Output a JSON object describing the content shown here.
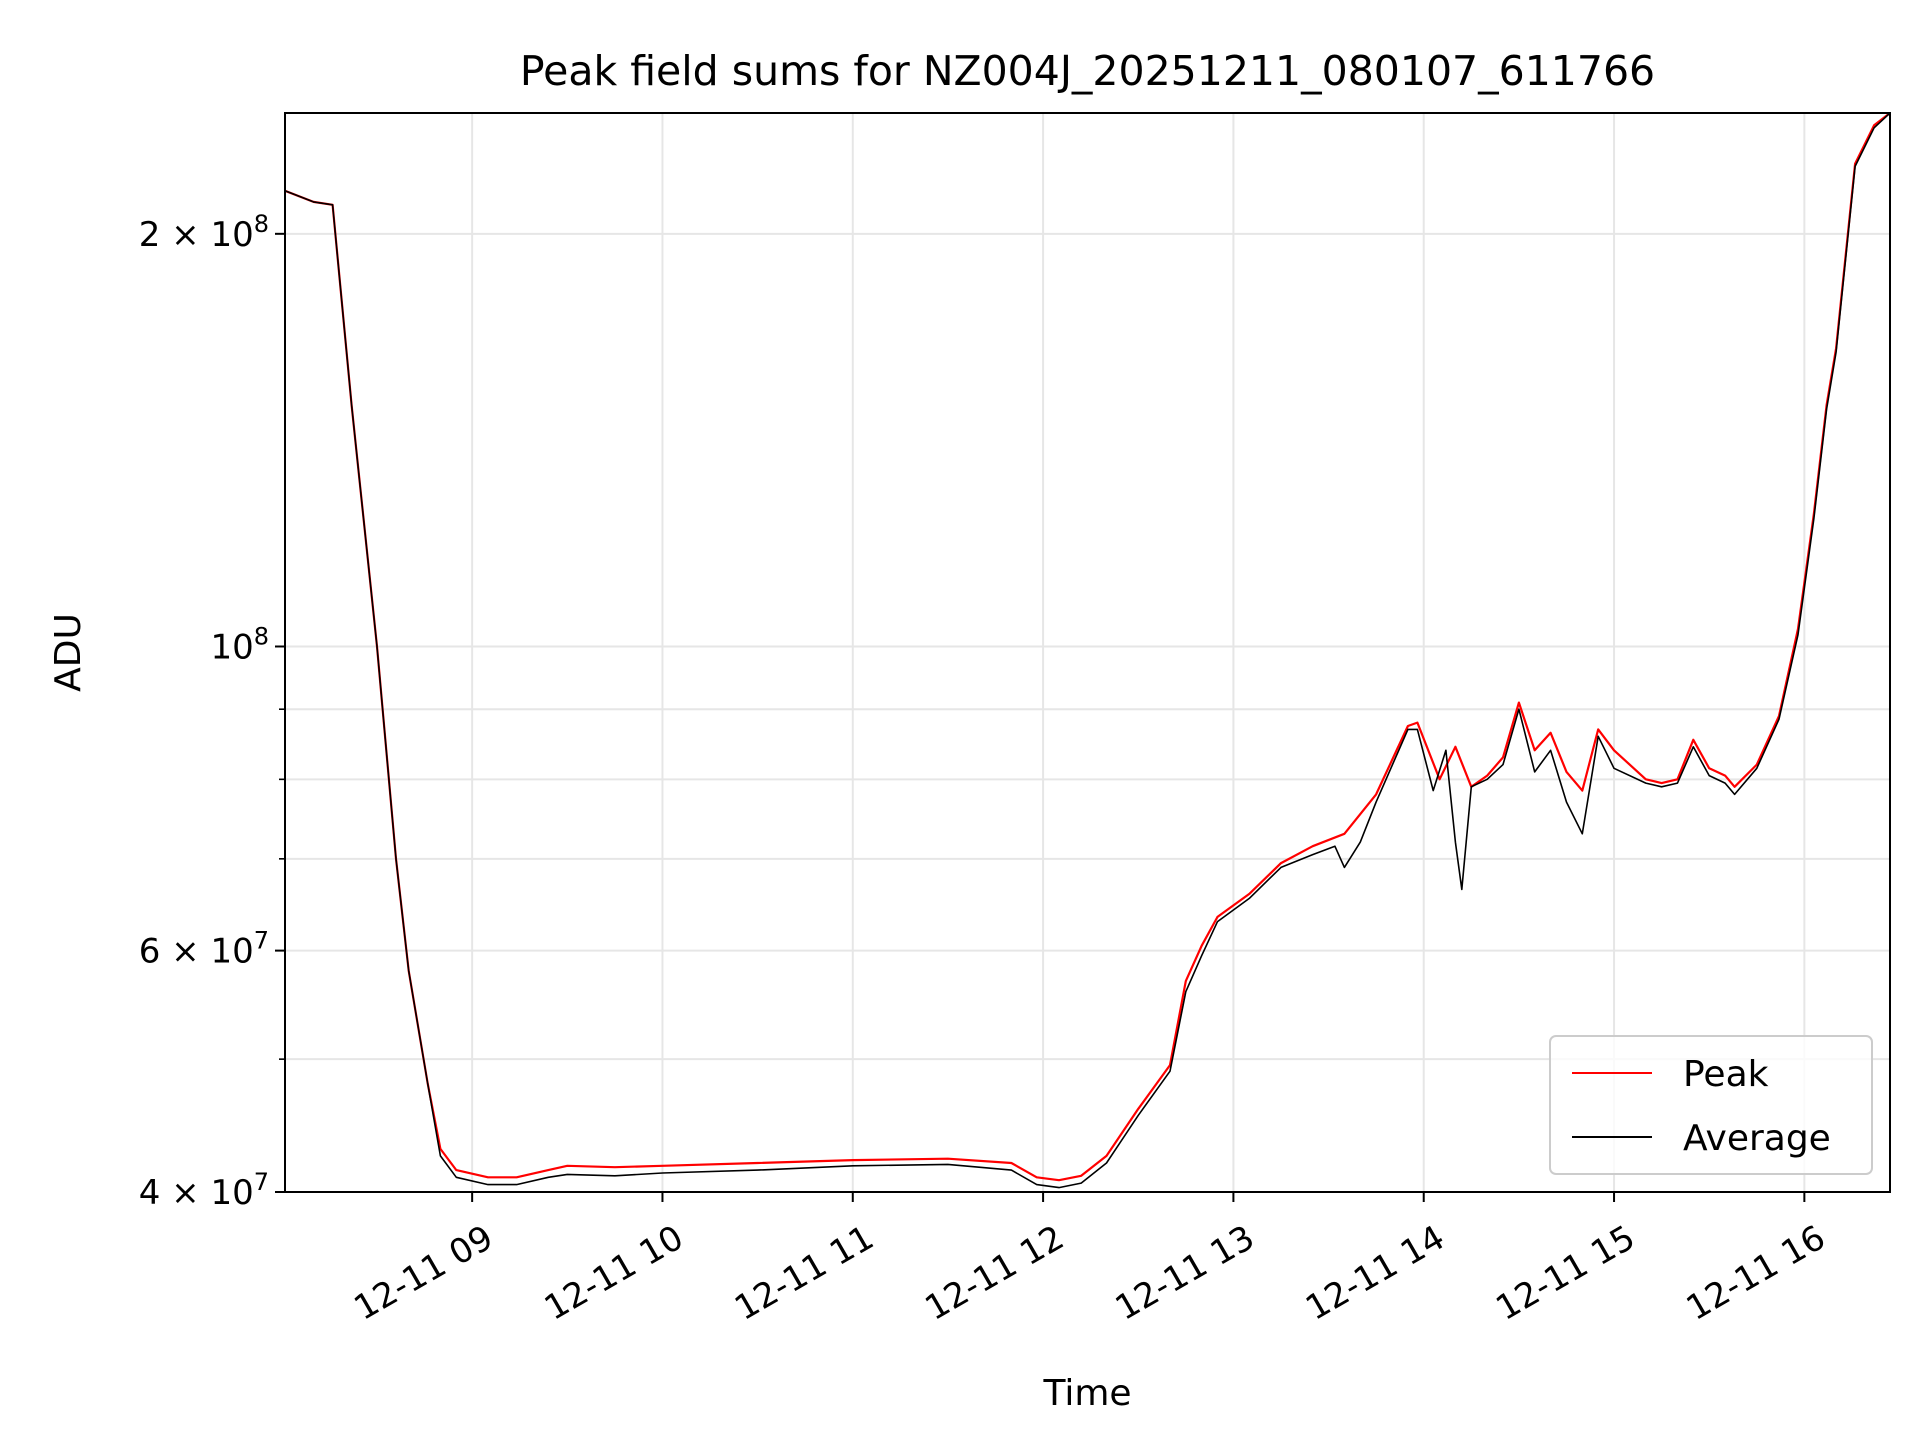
{
  "chart_data": {
    "type": "line",
    "title": "Peak field sums for NZ004J_20251211_080107_611766",
    "xlabel": "Time",
    "ylabel": "ADU",
    "xlim": [
      "2025-12-11 08:01",
      "2025-12-11 16:27"
    ],
    "ylim": [
      40000000,
      245000000
    ],
    "yscale": "log",
    "grid": true,
    "legend": "lower-right",
    "x_ticks": [
      "12-11 09",
      "12-11 10",
      "12-11 11",
      "12-11 12",
      "12-11 13",
      "12-11 14",
      "12-11 15",
      "12-11 16"
    ],
    "y_major_ticks": [
      {
        "value": 40000000,
        "label": "4 × 10",
        "exp": "7"
      },
      {
        "value": 60000000,
        "label": "6 × 10",
        "exp": "7"
      },
      {
        "value": 100000000,
        "label": "10",
        "exp": "8"
      },
      {
        "value": 200000000,
        "label": "2 × 10",
        "exp": "8"
      }
    ],
    "y_minor_ticks": [
      50000000,
      70000000,
      80000000,
      90000000
    ],
    "series": [
      {
        "name": "Peak",
        "color": "#ff0000",
        "x": [
          "2025-12-11 08:01",
          "2025-12-11 08:10",
          "2025-12-11 08:16",
          "2025-12-11 08:22",
          "2025-12-11 08:30",
          "2025-12-11 08:36",
          "2025-12-11 08:40",
          "2025-12-11 08:46",
          "2025-12-11 08:50",
          "2025-12-11 08:55",
          "2025-12-11 09:05",
          "2025-12-11 09:14",
          "2025-12-11 09:24",
          "2025-12-11 09:30",
          "2025-12-11 09:45",
          "2025-12-11 10:00",
          "2025-12-11 10:30",
          "2025-12-11 11:00",
          "2025-12-11 11:30",
          "2025-12-11 11:50",
          "2025-12-11 11:58",
          "2025-12-11 12:05",
          "2025-12-11 12:12",
          "2025-12-11 12:20",
          "2025-12-11 12:30",
          "2025-12-11 12:40",
          "2025-12-11 12:45",
          "2025-12-11 12:50",
          "2025-12-11 12:55",
          "2025-12-11 13:05",
          "2025-12-11 13:15",
          "2025-12-11 13:25",
          "2025-12-11 13:35",
          "2025-12-11 13:45",
          "2025-12-11 13:55",
          "2025-12-11 13:58",
          "2025-12-11 14:05",
          "2025-12-11 14:10",
          "2025-12-11 14:15",
          "2025-12-11 14:20",
          "2025-12-11 14:25",
          "2025-12-11 14:30",
          "2025-12-11 14:35",
          "2025-12-11 14:40",
          "2025-12-11 14:45",
          "2025-12-11 14:50",
          "2025-12-11 14:55",
          "2025-12-11 15:00",
          "2025-12-11 15:10",
          "2025-12-11 15:15",
          "2025-12-11 15:20",
          "2025-12-11 15:25",
          "2025-12-11 15:30",
          "2025-12-11 15:35",
          "2025-12-11 15:38",
          "2025-12-11 15:45",
          "2025-12-11 15:52",
          "2025-12-11 15:58",
          "2025-12-11 16:03",
          "2025-12-11 16:07",
          "2025-12-11 16:10",
          "2025-12-11 16:16",
          "2025-12-11 16:22",
          "2025-12-11 16:27"
        ],
        "y": [
          215000000,
          211000000,
          210000000,
          150000000,
          100000000,
          70000000,
          58000000,
          48000000,
          43000000,
          41500000,
          41000000,
          41000000,
          41500000,
          41800000,
          41700000,
          41800000,
          42000000,
          42200000,
          42300000,
          42000000,
          41000000,
          40800000,
          41100000,
          42500000,
          46000000,
          49500000,
          57000000,
          60500000,
          63500000,
          66000000,
          69500000,
          71500000,
          73000000,
          78000000,
          87500000,
          88000000,
          80000000,
          84500000,
          79000000,
          80500000,
          83000000,
          91000000,
          84000000,
          86500000,
          81000000,
          78500000,
          87000000,
          84000000,
          80000000,
          79500000,
          80000000,
          85500000,
          81500000,
          80500000,
          79000000,
          82000000,
          89000000,
          103000000,
          125000000,
          150000000,
          165000000,
          225000000,
          240000000,
          245000000
        ]
      },
      {
        "name": "Average",
        "color": "#000000",
        "x": [
          "2025-12-11 08:01",
          "2025-12-11 08:10",
          "2025-12-11 08:16",
          "2025-12-11 08:22",
          "2025-12-11 08:30",
          "2025-12-11 08:36",
          "2025-12-11 08:40",
          "2025-12-11 08:46",
          "2025-12-11 08:50",
          "2025-12-11 08:55",
          "2025-12-11 09:05",
          "2025-12-11 09:14",
          "2025-12-11 09:24",
          "2025-12-11 09:30",
          "2025-12-11 09:45",
          "2025-12-11 10:00",
          "2025-12-11 10:30",
          "2025-12-11 11:00",
          "2025-12-11 11:30",
          "2025-12-11 11:50",
          "2025-12-11 11:58",
          "2025-12-11 12:05",
          "2025-12-11 12:12",
          "2025-12-11 12:20",
          "2025-12-11 12:30",
          "2025-12-11 12:40",
          "2025-12-11 12:45",
          "2025-12-11 12:50",
          "2025-12-11 12:55",
          "2025-12-11 13:05",
          "2025-12-11 13:15",
          "2025-12-11 13:25",
          "2025-12-11 13:32",
          "2025-12-11 13:35",
          "2025-12-11 13:40",
          "2025-12-11 13:45",
          "2025-12-11 13:55",
          "2025-12-11 13:58",
          "2025-12-11 14:03",
          "2025-12-11 14:07",
          "2025-12-11 14:10",
          "2025-12-11 14:12",
          "2025-12-11 14:15",
          "2025-12-11 14:20",
          "2025-12-11 14:25",
          "2025-12-11 14:30",
          "2025-12-11 14:35",
          "2025-12-11 14:40",
          "2025-12-11 14:45",
          "2025-12-11 14:50",
          "2025-12-11 14:55",
          "2025-12-11 15:00",
          "2025-12-11 15:10",
          "2025-12-11 15:15",
          "2025-12-11 15:20",
          "2025-12-11 15:25",
          "2025-12-11 15:30",
          "2025-12-11 15:35",
          "2025-12-11 15:38",
          "2025-12-11 15:45",
          "2025-12-11 15:52",
          "2025-12-11 15:58",
          "2025-12-11 16:03",
          "2025-12-11 16:07",
          "2025-12-11 16:10",
          "2025-12-11 16:16",
          "2025-12-11 16:22",
          "2025-12-11 16:27"
        ],
        "y": [
          215000000,
          211000000,
          210000000,
          150000000,
          100000000,
          70000000,
          58000000,
          48000000,
          42500000,
          41000000,
          40500000,
          40500000,
          41000000,
          41200000,
          41100000,
          41300000,
          41500000,
          41800000,
          41900000,
          41500000,
          40500000,
          40300000,
          40600000,
          42000000,
          45500000,
          49000000,
          56000000,
          59500000,
          63000000,
          65500000,
          69000000,
          70500000,
          71500000,
          69000000,
          72000000,
          77000000,
          87000000,
          87000000,
          78500000,
          84000000,
          72000000,
          66500000,
          79000000,
          80000000,
          82000000,
          90000000,
          81000000,
          84000000,
          77000000,
          73000000,
          86000000,
          81500000,
          79500000,
          79000000,
          79500000,
          84500000,
          80500000,
          79500000,
          78000000,
          81500000,
          88500000,
          102000000,
          124000000,
          149000000,
          164000000,
          224000000,
          239000000,
          245000000
        ]
      }
    ]
  }
}
